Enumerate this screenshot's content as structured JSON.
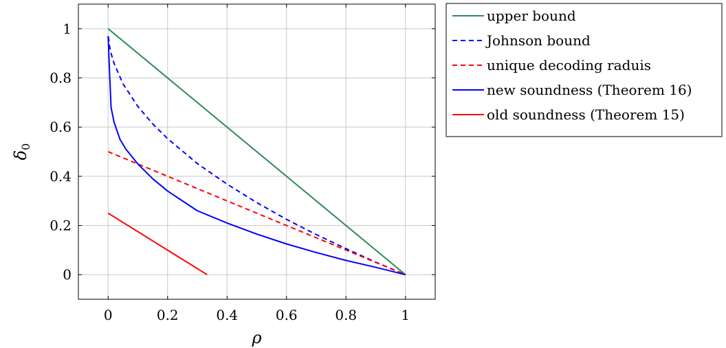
{
  "chart_data": {
    "type": "line",
    "title": "",
    "xlabel": "ρ",
    "ylabel": "δ0",
    "xlim": [
      -0.1,
      1.1
    ],
    "ylim": [
      -0.1,
      1.1
    ],
    "grid": true,
    "legend_position": "outside-right-top",
    "x_ticks": [
      0,
      0.2,
      0.4,
      0.6,
      0.8,
      1
    ],
    "x_tick_labels": [
      "0",
      "0.2",
      "0.4",
      "0.6",
      "0.8",
      "1"
    ],
    "y_ticks": [
      0,
      0.2,
      0.4,
      0.6,
      0.8,
      1
    ],
    "y_tick_labels": [
      "0",
      "0.2",
      "0.4",
      "0.6",
      "0.8",
      "1"
    ],
    "series": [
      {
        "name": "upper bound",
        "color": "#2e8b57",
        "style": "solid",
        "x": [
          0,
          1
        ],
        "y": [
          1,
          0
        ]
      },
      {
        "name": "Johnson bound",
        "color": "#0000ff",
        "style": "dashed",
        "x": [
          0.001,
          0.005,
          0.01,
          0.02,
          0.05,
          0.1,
          0.15,
          0.2,
          0.3,
          0.4,
          0.5,
          0.6,
          0.7,
          0.8,
          0.9,
          1.0
        ],
        "y": [
          0.968,
          0.929,
          0.9,
          0.859,
          0.776,
          0.684,
          0.613,
          0.553,
          0.452,
          0.368,
          0.293,
          0.225,
          0.163,
          0.106,
          0.051,
          0
        ]
      },
      {
        "name": "unique decoding raduis",
        "color": "#ff0000",
        "style": "dashed",
        "x": [
          0,
          1
        ],
        "y": [
          0.5,
          0
        ]
      },
      {
        "name": "new soundness (Theorem 16)",
        "color": "#0000ff",
        "style": "solid",
        "x": [
          0.0,
          0.005,
          0.01,
          0.02,
          0.04,
          0.06,
          0.1,
          0.15,
          0.2,
          0.3,
          0.4,
          0.5,
          0.6,
          0.7,
          0.8,
          0.9,
          1.0
        ],
        "y": [
          0.97,
          0.82,
          0.68,
          0.62,
          0.55,
          0.51,
          0.45,
          0.39,
          0.34,
          0.26,
          0.21,
          0.165,
          0.125,
          0.09,
          0.058,
          0.03,
          0
        ]
      },
      {
        "name": "old soundness (Theorem 15)",
        "color": "#ff0000",
        "style": "solid",
        "x": [
          0,
          0.333
        ],
        "y": [
          0.25,
          0
        ]
      }
    ]
  }
}
